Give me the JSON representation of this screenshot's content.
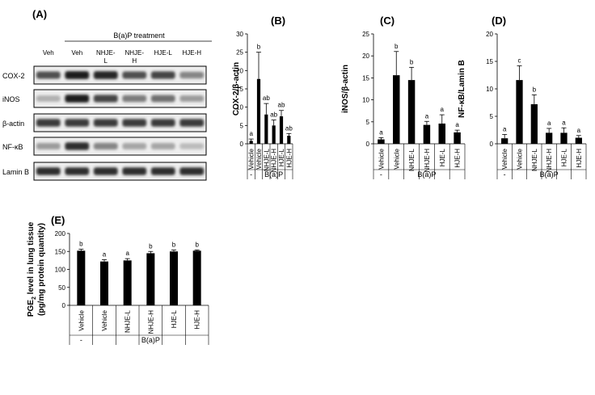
{
  "blot": {
    "panel_label": "(A)",
    "treatment_label": "B(a)P treatment",
    "lane_labels": [
      [
        "Veh"
      ],
      [
        "Veh"
      ],
      [
        "NHJE-",
        "L"
      ],
      [
        "NHJE-",
        "H"
      ],
      [
        "HJE-L"
      ],
      [
        "HJE-H"
      ]
    ],
    "rows": [
      {
        "label": "COX-2",
        "intensity": [
          0.7,
          0.95,
          0.9,
          0.7,
          0.75,
          0.45
        ]
      },
      {
        "label": "iNOS",
        "intensity": [
          0.25,
          0.95,
          0.75,
          0.5,
          0.55,
          0.35
        ]
      },
      {
        "label": "β-actin",
        "intensity": [
          0.8,
          0.8,
          0.8,
          0.8,
          0.8,
          0.8
        ]
      },
      {
        "label": "NF-κB",
        "intensity": [
          0.35,
          0.85,
          0.45,
          0.3,
          0.3,
          0.2
        ]
      },
      {
        "label": "Lamin B",
        "intensity": [
          0.85,
          0.85,
          0.85,
          0.85,
          0.85,
          0.85
        ]
      }
    ]
  },
  "chart_data": [
    {
      "panel": "(B)",
      "type": "bar",
      "ylabel": "COX-2/β-actin",
      "ylim": [
        0,
        30
      ],
      "yticks": [
        0,
        5,
        10,
        15,
        20,
        25,
        30
      ],
      "categories": [
        "Vehicle",
        "Vehicle",
        "NHJE-L",
        "NHJE-H",
        "HJE-L",
        "HJE-H"
      ],
      "values": [
        0.8,
        17.7,
        8.0,
        5.0,
        7.5,
        2.2
      ],
      "errors": [
        0.5,
        7.3,
        3.0,
        1.5,
        1.6,
        0.6
      ],
      "significance": [
        "a",
        "b",
        "ab",
        "ab",
        "ab",
        "ab"
      ],
      "groups": [
        {
          "label": "-",
          "from": 0,
          "to": 0
        },
        {
          "label": "B(a)P",
          "from": 1,
          "to": 5
        }
      ]
    },
    {
      "panel": "(C)",
      "type": "bar",
      "ylabel": "iNOS/β-actin",
      "ylim": [
        0,
        25
      ],
      "yticks": [
        0,
        5,
        10,
        15,
        20,
        25
      ],
      "categories": [
        "Vehicle",
        "Vehicle",
        "NHJE-L",
        "NHJE-H",
        "HJE-L",
        "HJE-H"
      ],
      "values": [
        1.0,
        15.6,
        14.5,
        4.3,
        4.6,
        2.6
      ],
      "errors": [
        0.4,
        5.4,
        2.9,
        0.8,
        2.0,
        0.5
      ],
      "significance": [
        "a",
        "b",
        "b",
        "a",
        "a",
        "a"
      ],
      "groups": [
        {
          "label": "-",
          "from": 0,
          "to": 0
        },
        {
          "label": "B(a)P",
          "from": 1,
          "to": 5
        }
      ]
    },
    {
      "panel": "(D)",
      "type": "bar",
      "ylabel": "NF-κB/Lamin B",
      "ylim": [
        0,
        20
      ],
      "yticks": [
        0,
        5,
        10,
        15,
        20
      ],
      "categories": [
        "Vehicle",
        "Vehicle",
        "NHJE-L",
        "NHJE-H",
        "HJE-L",
        "HJE-H"
      ],
      "values": [
        1.0,
        11.6,
        7.2,
        2.0,
        2.0,
        1.1
      ],
      "errors": [
        0.7,
        2.6,
        1.7,
        0.8,
        0.9,
        0.4
      ],
      "significance": [
        "a",
        "c",
        "b",
        "a",
        "a",
        "a"
      ],
      "groups": [
        {
          "label": "-",
          "from": 0,
          "to": 0
        },
        {
          "label": "B(a)P",
          "from": 1,
          "to": 5
        }
      ]
    },
    {
      "panel": "(E)",
      "type": "bar",
      "ylabel_parts": [
        "PGE",
        "2",
        " level in lung tissue"
      ],
      "ylabel2": "(pg/mg protein quantity)",
      "ylim": [
        0,
        200
      ],
      "yticks": [
        0,
        50,
        100,
        150,
        200
      ],
      "categories": [
        "Vehicle",
        "Vehicle",
        "NHJE-L",
        "NHJE-H",
        "HJE-L",
        "HJE-H"
      ],
      "values": [
        152,
        122,
        125,
        145,
        150,
        152
      ],
      "errors": [
        4,
        5,
        5,
        5,
        4,
        2
      ],
      "significance": [
        "b",
        "a",
        "a",
        "b",
        "b",
        "b"
      ],
      "groups": [
        {
          "label": "-",
          "from": 0,
          "to": 0
        },
        {
          "label": "B(a)P",
          "from": 1,
          "to": 5
        }
      ]
    }
  ]
}
